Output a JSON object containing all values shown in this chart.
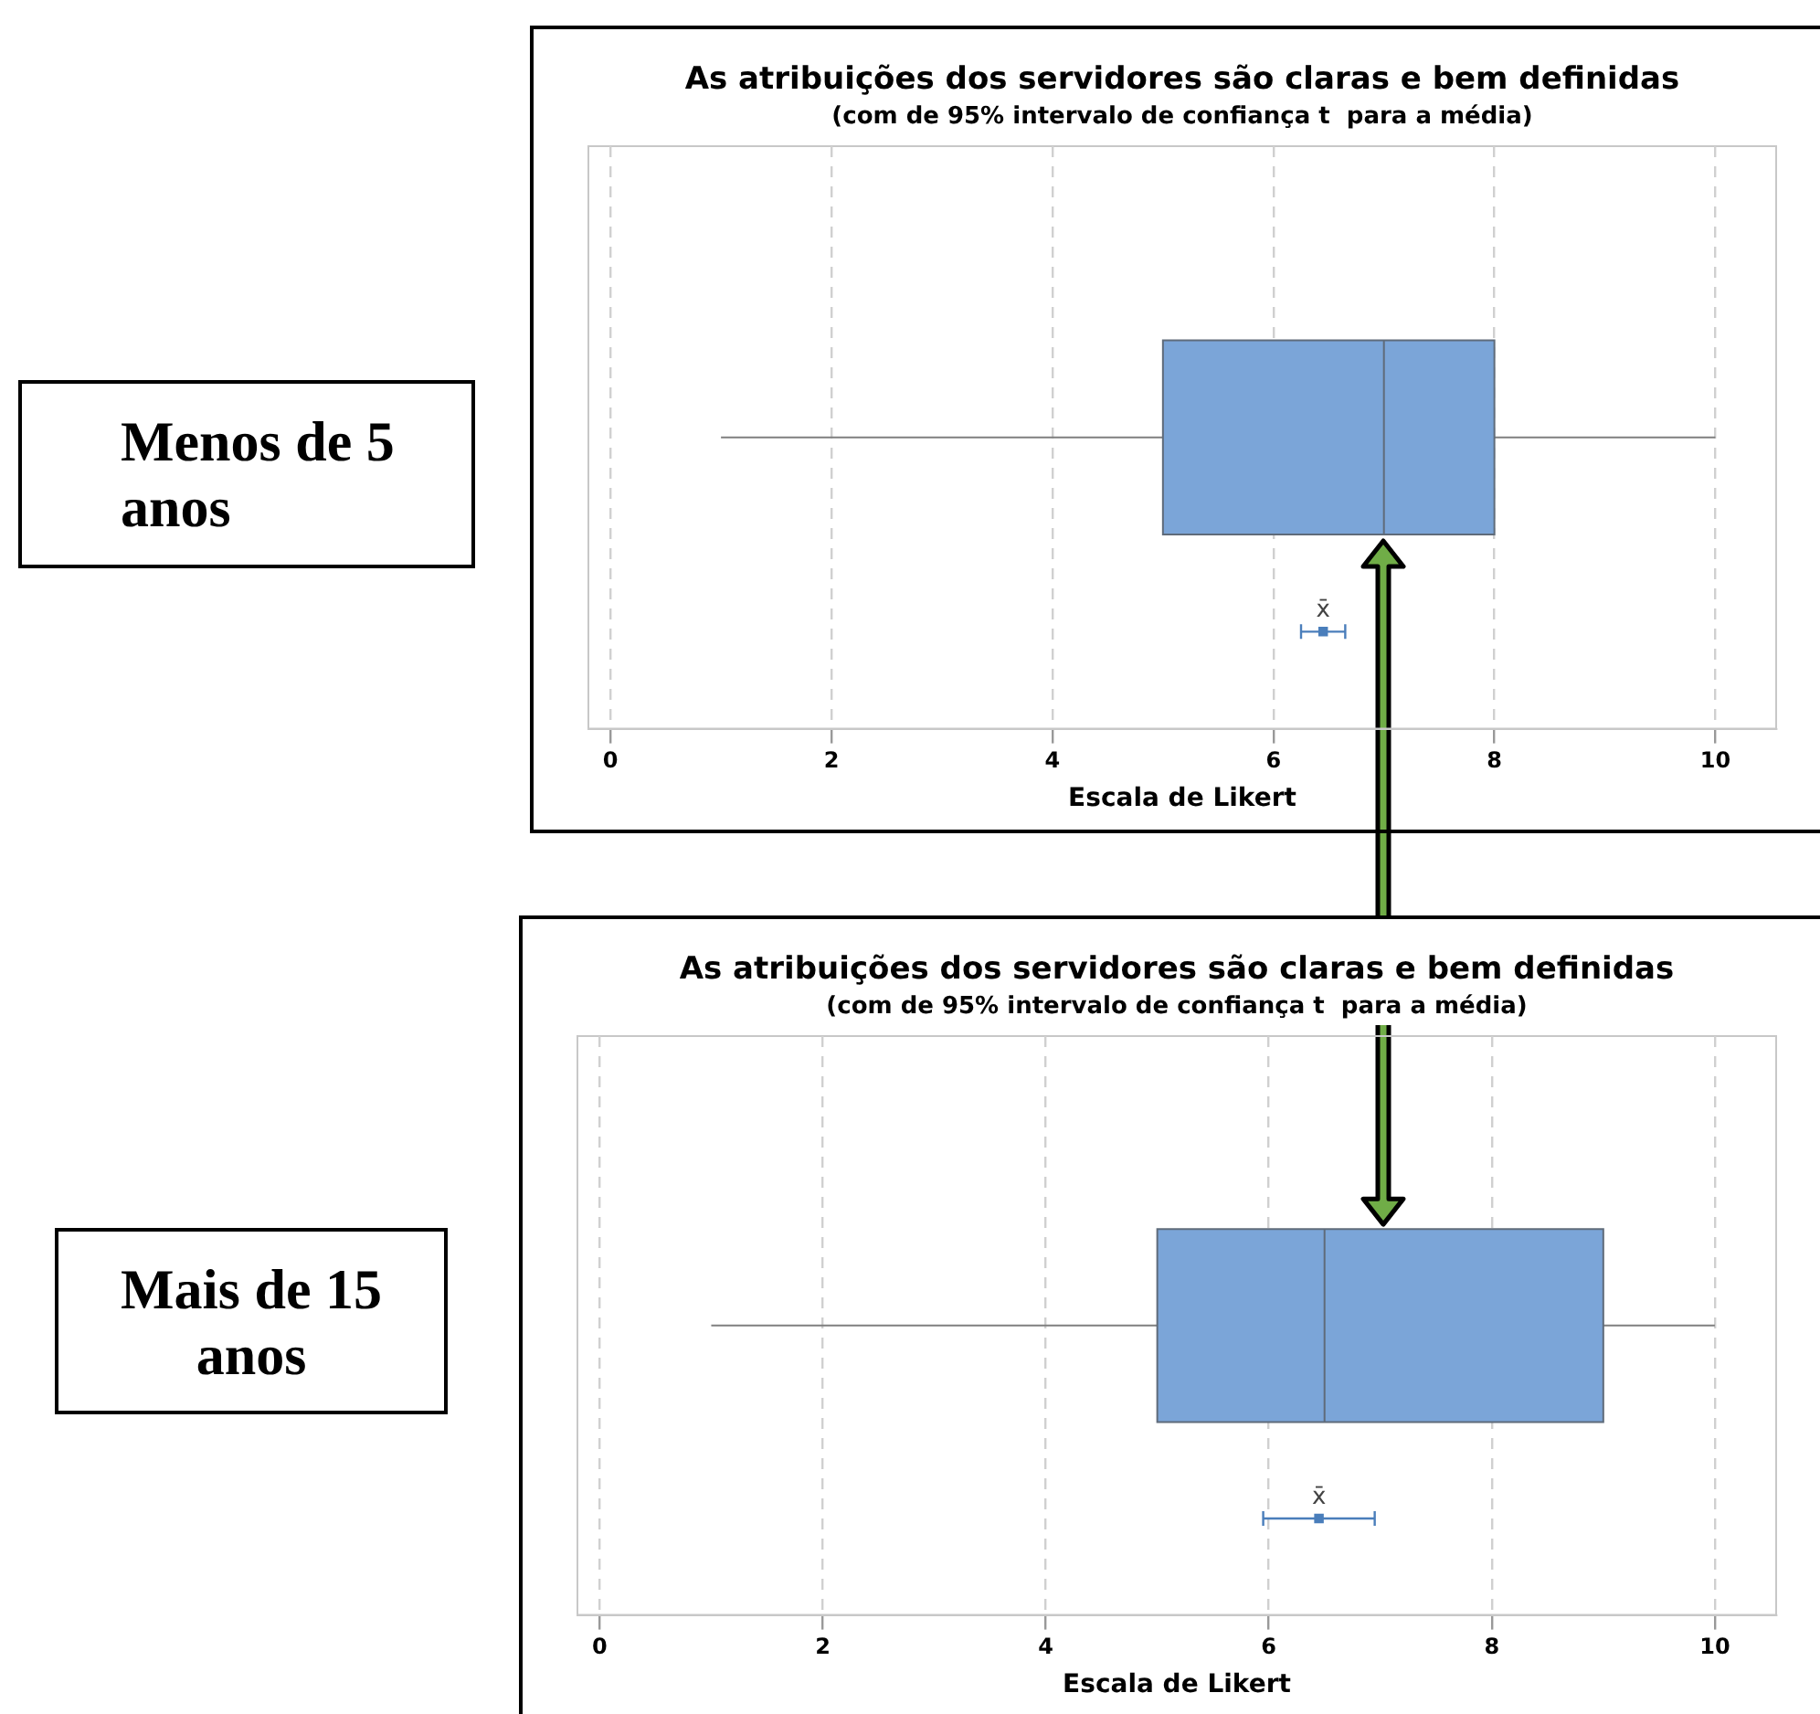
{
  "chart_data": [
    {
      "type": "box",
      "title": "As atribuições dos servidores são claras e bem definidas",
      "subtitle": "(com de 95% intervalo de confiança t  para a média)",
      "xlabel": "Escala de Likert",
      "orientation": "horizontal",
      "categories": [
        null,
        null,
        null
      ],
      "xlim": [
        -0.2,
        10.55
      ],
      "xticks": [
        0,
        2,
        4,
        6,
        8,
        10
      ],
      "grid": "x",
      "series": [
        {
          "type": "box",
          "color": "#7ba5d8",
          "boxes": [
            null,
            {
              "low": 1,
              "q1": 5,
              "median": 7,
              "q3": 8,
              "high": 10
            },
            null
          ]
        },
        {
          "type": "scatter",
          "color": "#4a7ebb",
          "marker": "square",
          "values": [
            null,
            null,
            6.45
          ],
          "errors": [
            null,
            null,
            [
              6.25,
              6.65
            ]
          ]
        }
      ],
      "annotations": [
        "x̄",
        "Menos de 5 anos"
      ]
    },
    {
      "type": "box",
      "title": "As atribuições dos servidores são claras e bem definidas",
      "subtitle": "(com de 95% intervalo de confiança t  para a média)",
      "xlabel": "Escala de Likert",
      "orientation": "horizontal",
      "categories": [
        null,
        null,
        null
      ],
      "xlim": [
        -0.2,
        10.55
      ],
      "xticks": [
        0,
        2,
        4,
        6,
        8,
        10
      ],
      "grid": "x",
      "series": [
        {
          "type": "box",
          "color": "#7ba5d8",
          "boxes": [
            null,
            {
              "low": 1,
              "q1": 5,
              "median": 6.5,
              "q3": 9,
              "high": 10
            },
            null
          ]
        },
        {
          "type": "scatter",
          "color": "#4a7ebb",
          "marker": "square",
          "values": [
            null,
            null,
            6.45
          ],
          "errors": [
            null,
            null,
            [
              5.95,
              6.95
            ]
          ]
        }
      ],
      "annotations": [
        "x̄",
        "Mais de 15 anos"
      ]
    }
  ]
}
